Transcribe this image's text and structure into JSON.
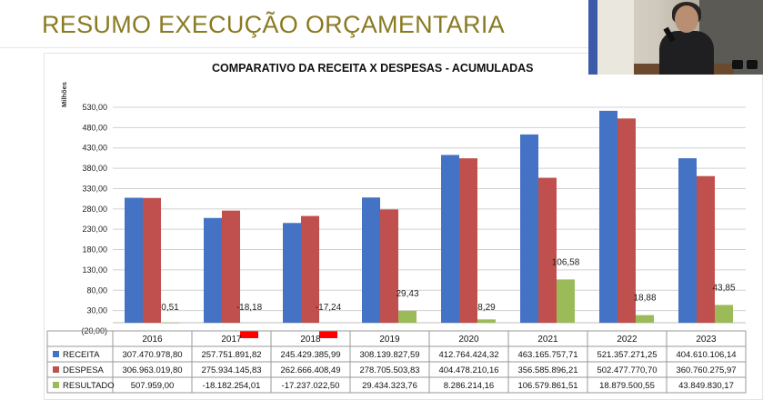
{
  "slide": {
    "title": "RESUMO EXECUÇÃO ORÇAMENTARIA"
  },
  "chart_data": {
    "type": "bar",
    "title": "COMPARATIVO DA RECEITA X DESPESAS - ACUMULADAS",
    "ylabel": "Milhões",
    "xlabel": "",
    "ylim": [
      -20,
      530
    ],
    "y_ticks": [
      "(20,00)",
      "30,00",
      "80,00",
      "130,00",
      "180,00",
      "230,00",
      "280,00",
      "330,00",
      "380,00",
      "430,00",
      "480,00",
      "530,00"
    ],
    "y_tick_values": [
      -20,
      30,
      80,
      130,
      180,
      230,
      280,
      330,
      380,
      430,
      480,
      530
    ],
    "grid": true,
    "legend": "table-below",
    "categories": [
      "2016",
      "2017",
      "2018",
      "2019",
      "2020",
      "2021",
      "2022",
      "2023"
    ],
    "series": [
      {
        "name": "RECEITA",
        "color": "#4472c4",
        "values": [
          307.47,
          257.75,
          245.43,
          308.14,
          412.76,
          463.17,
          521.36,
          404.61
        ],
        "table_values": [
          "307.470.978,80",
          "257.751.891,82",
          "245.429.385,99",
          "308.139.827,59",
          "412.764.424,32",
          "463.165.757,71",
          "521.357.271,25",
          "404.610.106,14"
        ]
      },
      {
        "name": "DESPESA",
        "color": "#c0504d",
        "values": [
          306.96,
          275.93,
          262.67,
          278.71,
          404.48,
          356.59,
          502.48,
          360.76
        ],
        "table_values": [
          "306.963.019,80",
          "275.934.145,83",
          "262.666.408,49",
          "278.705.503,83",
          "404.478.210,16",
          "356.585.896,21",
          "502.477.770,70",
          "360.760.275,97"
        ]
      },
      {
        "name": "RESULTADO",
        "color": "#9bbb59",
        "negative_color": "#ff0000",
        "values": [
          0.51,
          -18.18,
          -17.24,
          29.43,
          8.29,
          106.58,
          18.88,
          43.85
        ],
        "data_labels": [
          "0,51",
          "-18,18",
          "-17,24",
          "29,43",
          "8,29",
          "106,58",
          "18,88",
          "43,85"
        ],
        "table_values": [
          "507.959,00",
          "-18.182.254,01",
          "-17.237.022,50",
          "29.434.323,76",
          "8.286.214,16",
          "106.579.861,51",
          "18.879.500,55",
          "43.849.830,17"
        ]
      }
    ]
  },
  "webcam": {
    "icon": "person-speaking-icon"
  }
}
